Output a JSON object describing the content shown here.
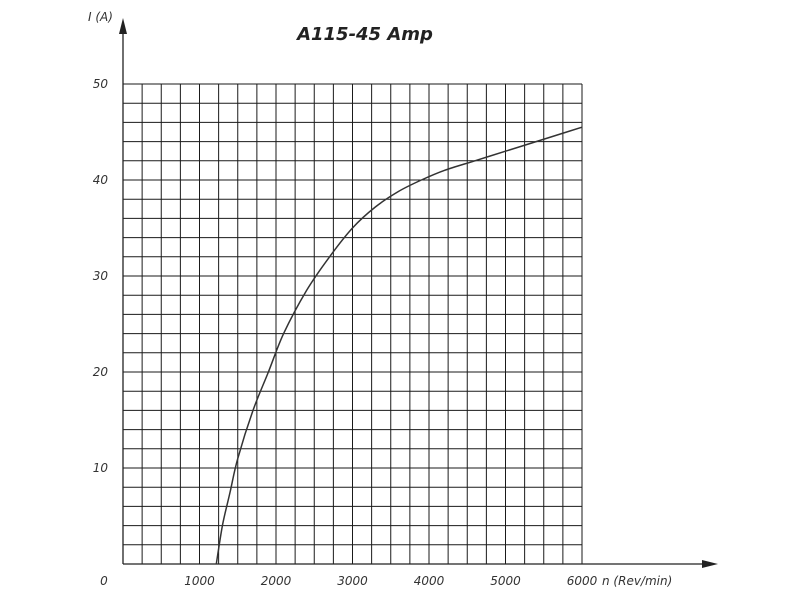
{
  "chart_data": {
    "type": "line",
    "title": "A115-45 Amp",
    "xlabel": "n (Rev/min)",
    "ylabel": "I (A)",
    "xlim": [
      0,
      6000
    ],
    "ylim": [
      0,
      50
    ],
    "x_ticks": [
      1000,
      2000,
      3000,
      4000,
      5000,
      6000
    ],
    "y_ticks": [
      10,
      20,
      30,
      40,
      50
    ],
    "origin_label": "0",
    "grid": true,
    "series": [
      {
        "x": [
          1220,
          1300,
          1400,
          1500,
          1700,
          1900,
          2100,
          2400,
          2700,
          3000,
          3300,
          3600,
          3900,
          4200,
          4600,
          5000,
          5400,
          5800,
          6000
        ],
        "y": [
          0,
          4,
          7.5,
          11,
          16,
          20,
          24,
          28.5,
          32,
          35,
          37.2,
          38.8,
          40,
          41,
          42,
          43,
          44,
          45,
          45.5
        ]
      }
    ],
    "colors": {
      "line": "#333333",
      "grid": "#1a1a1a",
      "axis": "#222222",
      "text": "#333333"
    }
  }
}
